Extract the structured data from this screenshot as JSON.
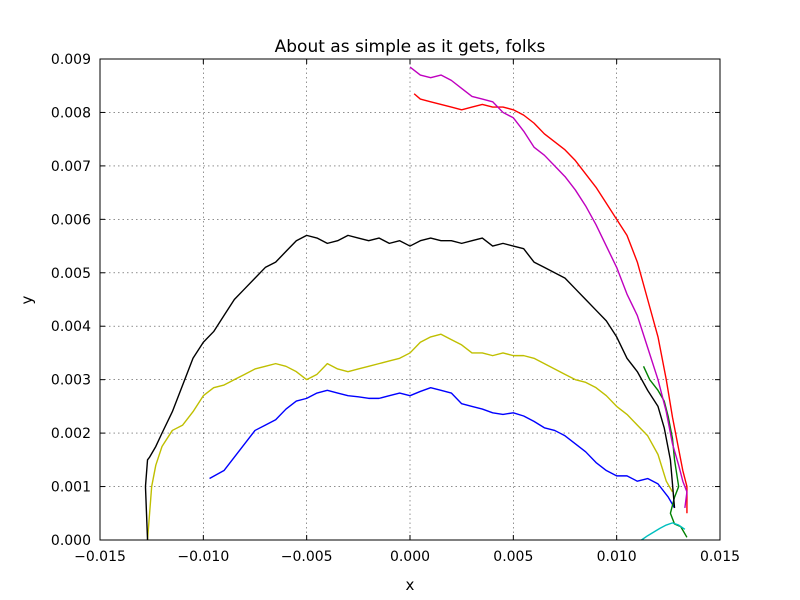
{
  "chart_data": {
    "type": "line",
    "title": "About as simple as it gets, folks",
    "xlabel": "x",
    "ylabel": "y",
    "xlim": [
      -0.015,
      0.015
    ],
    "ylim": [
      0.0,
      0.009
    ],
    "xticks": [
      -0.015,
      -0.01,
      -0.005,
      0.0,
      0.005,
      0.01,
      0.015
    ],
    "xtick_labels": [
      "−0.015",
      "−0.010",
      "−0.005",
      "0.000",
      "0.005",
      "0.010",
      "0.015"
    ],
    "yticks": [
      0.0,
      0.001,
      0.002,
      0.003,
      0.004,
      0.005,
      0.006,
      0.007,
      0.008,
      0.009
    ],
    "ytick_labels": [
      "0.000",
      "0.001",
      "0.002",
      "0.003",
      "0.004",
      "0.005",
      "0.006",
      "0.007",
      "0.008",
      "0.009"
    ],
    "grid": true,
    "series": [
      {
        "color": "#0000ff",
        "x": [
          -0.0097,
          -0.009,
          -0.0085,
          -0.008,
          -0.0075,
          -0.007,
          -0.0065,
          -0.006,
          -0.0055,
          -0.005,
          -0.0045,
          -0.004,
          -0.0035,
          -0.003,
          -0.0025,
          -0.002,
          -0.0015,
          -0.001,
          -0.0005,
          0.0,
          0.0005,
          0.001,
          0.0015,
          0.002,
          0.0025,
          0.003,
          0.0035,
          0.004,
          0.0045,
          0.005,
          0.0055,
          0.006,
          0.0065,
          0.007,
          0.0075,
          0.008,
          0.0085,
          0.009,
          0.0095,
          0.01,
          0.0105,
          0.011,
          0.0115,
          0.012,
          0.0125,
          0.0128
        ],
        "y": [
          0.00115,
          0.0013,
          0.00155,
          0.0018,
          0.00205,
          0.00215,
          0.00225,
          0.00245,
          0.0026,
          0.00265,
          0.00275,
          0.0028,
          0.00275,
          0.0027,
          0.00268,
          0.00265,
          0.00265,
          0.0027,
          0.00275,
          0.0027,
          0.00278,
          0.00285,
          0.0028,
          0.00275,
          0.00255,
          0.0025,
          0.00245,
          0.00238,
          0.00235,
          0.00238,
          0.00232,
          0.00222,
          0.0021,
          0.00205,
          0.00195,
          0.0018,
          0.00165,
          0.00145,
          0.0013,
          0.0012,
          0.0012,
          0.0011,
          0.00115,
          0.00105,
          0.0008,
          0.0006
        ]
      },
      {
        "color": "#008000",
        "x": [
          0.0113,
          0.0116,
          0.012,
          0.0123,
          0.0125,
          0.0127,
          0.0128,
          0.013,
          0.0128,
          0.0126,
          0.0128,
          0.0131,
          0.0134
        ],
        "y": [
          0.00325,
          0.003,
          0.0028,
          0.0026,
          0.0023,
          0.0019,
          0.0015,
          0.001,
          0.0008,
          0.0005,
          0.0003,
          0.00025,
          5e-05
        ]
      },
      {
        "color": "#ff0000",
        "x": [
          0.0002,
          0.0005,
          0.001,
          0.0015,
          0.002,
          0.0025,
          0.003,
          0.0035,
          0.004,
          0.0045,
          0.005,
          0.0055,
          0.006,
          0.0065,
          0.007,
          0.0075,
          0.008,
          0.0085,
          0.009,
          0.0095,
          0.01,
          0.0105,
          0.011,
          0.0115,
          0.012,
          0.0124,
          0.0127,
          0.013,
          0.0132,
          0.0134,
          0.0134
        ],
        "y": [
          0.00835,
          0.00825,
          0.0082,
          0.00815,
          0.0081,
          0.00805,
          0.0081,
          0.00815,
          0.0081,
          0.0081,
          0.00805,
          0.00795,
          0.0078,
          0.0076,
          0.00745,
          0.0073,
          0.0071,
          0.00685,
          0.0066,
          0.0063,
          0.006,
          0.0057,
          0.0052,
          0.0045,
          0.0038,
          0.003,
          0.0023,
          0.0017,
          0.0013,
          0.001,
          0.0005
        ]
      },
      {
        "color": "#00bfbf",
        "x": [
          0.0112,
          0.0115,
          0.0118,
          0.0121,
          0.0124,
          0.0127,
          0.013,
          0.0133
        ],
        "y": [
          0.0,
          8e-05,
          0.00015,
          0.00022,
          0.00028,
          0.00032,
          0.00028,
          0.0002
        ]
      },
      {
        "color": "#bf00bf",
        "x": [
          0.0,
          0.0005,
          0.001,
          0.0015,
          0.002,
          0.0025,
          0.003,
          0.0035,
          0.004,
          0.0045,
          0.005,
          0.0055,
          0.006,
          0.0065,
          0.007,
          0.0075,
          0.008,
          0.0085,
          0.009,
          0.0095,
          0.01,
          0.0105,
          0.011,
          0.0115,
          0.012,
          0.0124,
          0.0127,
          0.013,
          0.0132,
          0.0134,
          0.0133
        ],
        "y": [
          0.00885,
          0.0087,
          0.00865,
          0.0087,
          0.0086,
          0.00845,
          0.0083,
          0.00825,
          0.0082,
          0.008,
          0.0079,
          0.00765,
          0.00735,
          0.0072,
          0.007,
          0.0068,
          0.00655,
          0.00625,
          0.0059,
          0.0055,
          0.0051,
          0.0046,
          0.0042,
          0.0036,
          0.003,
          0.0024,
          0.0018,
          0.0014,
          0.0011,
          0.0009,
          0.0006
        ]
      },
      {
        "color": "#bfbf00",
        "x": [
          -0.0127,
          -0.0126,
          -0.0125,
          -0.0123,
          -0.012,
          -0.0115,
          -0.011,
          -0.0105,
          -0.01,
          -0.0095,
          -0.009,
          -0.0085,
          -0.008,
          -0.0075,
          -0.007,
          -0.0065,
          -0.006,
          -0.0055,
          -0.005,
          -0.0045,
          -0.004,
          -0.0035,
          -0.003,
          -0.0025,
          -0.002,
          -0.0015,
          -0.001,
          -0.0005,
          0.0,
          0.0005,
          0.001,
          0.0015,
          0.002,
          0.0025,
          0.003,
          0.0035,
          0.004,
          0.0045,
          0.005,
          0.0055,
          0.006,
          0.0065,
          0.007,
          0.0075,
          0.008,
          0.0085,
          0.009,
          0.0095,
          0.01,
          0.0105,
          0.011,
          0.0115,
          0.012,
          0.0124,
          0.0127
        ],
        "y": [
          0.0,
          0.0005,
          0.001,
          0.0014,
          0.00175,
          0.00205,
          0.00215,
          0.0024,
          0.0027,
          0.00285,
          0.0029,
          0.003,
          0.0031,
          0.0032,
          0.00325,
          0.0033,
          0.00325,
          0.00315,
          0.003,
          0.0031,
          0.0033,
          0.0032,
          0.00315,
          0.0032,
          0.00325,
          0.0033,
          0.00335,
          0.0034,
          0.0035,
          0.0037,
          0.0038,
          0.00385,
          0.00375,
          0.00365,
          0.0035,
          0.0035,
          0.00345,
          0.0035,
          0.00345,
          0.00345,
          0.0034,
          0.0033,
          0.0032,
          0.0031,
          0.003,
          0.00295,
          0.00285,
          0.0027,
          0.0025,
          0.00235,
          0.00215,
          0.00195,
          0.0016,
          0.0011,
          0.0009
        ]
      },
      {
        "color": "#000000",
        "x": [
          -0.0127,
          -0.0128,
          -0.0127,
          -0.0126,
          -0.0123,
          -0.012,
          -0.0115,
          -0.011,
          -0.0105,
          -0.01,
          -0.0095,
          -0.009,
          -0.0085,
          -0.008,
          -0.0075,
          -0.007,
          -0.0065,
          -0.006,
          -0.0055,
          -0.005,
          -0.0045,
          -0.004,
          -0.0035,
          -0.003,
          -0.0025,
          -0.002,
          -0.0015,
          -0.001,
          -0.0005,
          0.0,
          0.0005,
          0.001,
          0.0015,
          0.002,
          0.0025,
          0.003,
          0.0035,
          0.004,
          0.0045,
          0.005,
          0.0055,
          0.006,
          0.0065,
          0.007,
          0.0075,
          0.008,
          0.0085,
          0.009,
          0.0095,
          0.01,
          0.0105,
          0.011,
          0.0115,
          0.012,
          0.0123,
          0.0126,
          0.0128
        ],
        "y": [
          0.0,
          0.001,
          0.0015,
          0.00155,
          0.00175,
          0.002,
          0.0024,
          0.0029,
          0.0034,
          0.0037,
          0.0039,
          0.0042,
          0.0045,
          0.0047,
          0.0049,
          0.0051,
          0.0052,
          0.0054,
          0.0056,
          0.0057,
          0.00565,
          0.00555,
          0.0056,
          0.0057,
          0.00565,
          0.0056,
          0.00565,
          0.00555,
          0.0056,
          0.0055,
          0.0056,
          0.00565,
          0.0056,
          0.0056,
          0.00555,
          0.0056,
          0.00565,
          0.0055,
          0.00555,
          0.0055,
          0.00545,
          0.0052,
          0.0051,
          0.005,
          0.0049,
          0.0047,
          0.0045,
          0.0043,
          0.0041,
          0.0038,
          0.0034,
          0.00315,
          0.0028,
          0.0025,
          0.0021,
          0.0015,
          0.0006
        ]
      }
    ]
  }
}
